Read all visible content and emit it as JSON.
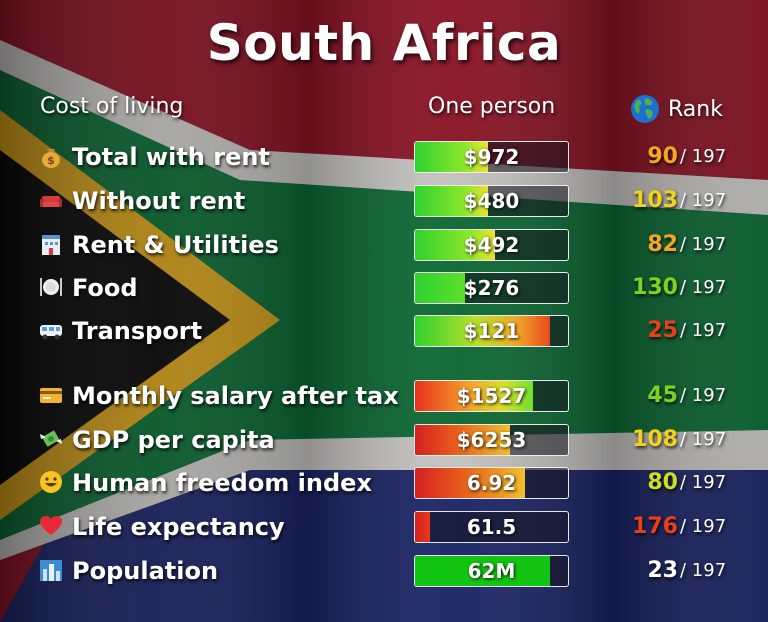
{
  "title": "South Africa",
  "headers": {
    "left": "Cost of living",
    "middle": "One person",
    "rank": "Rank"
  },
  "rank_total": "/ 197",
  "colors": {
    "green": "#2ecc40",
    "yellow": "#f2d21b",
    "orange": "#f5a623",
    "red": "#e8401c",
    "white": "#ffffff"
  },
  "rows": [
    {
      "icon": "money-bag-icon",
      "label": "Total with rent",
      "value": "$972",
      "fill": 0.48,
      "fill_style": "green-yellow",
      "rank": "90",
      "rank_color": "#f5a623"
    },
    {
      "icon": "sofa-icon",
      "label": "Without rent",
      "value": "$480",
      "fill": 0.48,
      "fill_style": "green-yellow",
      "rank": "103",
      "rank_color": "#f2d21b"
    },
    {
      "icon": "hotel-icon",
      "label": "Rent & Utilities",
      "value": "$492",
      "fill": 0.52,
      "fill_style": "green-yellow",
      "rank": "82",
      "rank_color": "#f5a623"
    },
    {
      "icon": "fork-knife-icon",
      "label": "Food",
      "value": "$276",
      "fill": 0.33,
      "fill_style": "green",
      "rank": "130",
      "rank_color": "#7ed321"
    },
    {
      "icon": "minibus-icon",
      "label": "Transport",
      "value": "$121",
      "fill": 0.88,
      "fill_style": "green-red",
      "rank": "25",
      "rank_color": "#e8401c"
    },
    {
      "icon": "credit-card-icon",
      "label": "Monthly salary after tax",
      "value": "$1527",
      "fill": 0.77,
      "fill_style": "red-green",
      "rank": "45",
      "rank_color": "#7ed321"
    },
    {
      "icon": "money-wings-icon",
      "label": "GDP per capita",
      "value": "$6253",
      "fill": 0.62,
      "fill_style": "red-yellow",
      "rank": "108",
      "rank_color": "#f2d21b"
    },
    {
      "icon": "smiley-icon",
      "label": "Human freedom index",
      "value": "6.92",
      "fill": 0.72,
      "fill_style": "red-yellow",
      "rank": "80",
      "rank_color": "#c8e021"
    },
    {
      "icon": "heart-icon",
      "label": "Life expectancy",
      "value": "61.5",
      "fill": 0.1,
      "fill_style": "red",
      "rank": "176",
      "rank_color": "#e8401c"
    },
    {
      "icon": "city-icon",
      "label": "Population",
      "value": "62M",
      "fill": 0.88,
      "fill_style": "solid-green",
      "rank": "23",
      "rank_color": "#ffffff"
    }
  ]
}
